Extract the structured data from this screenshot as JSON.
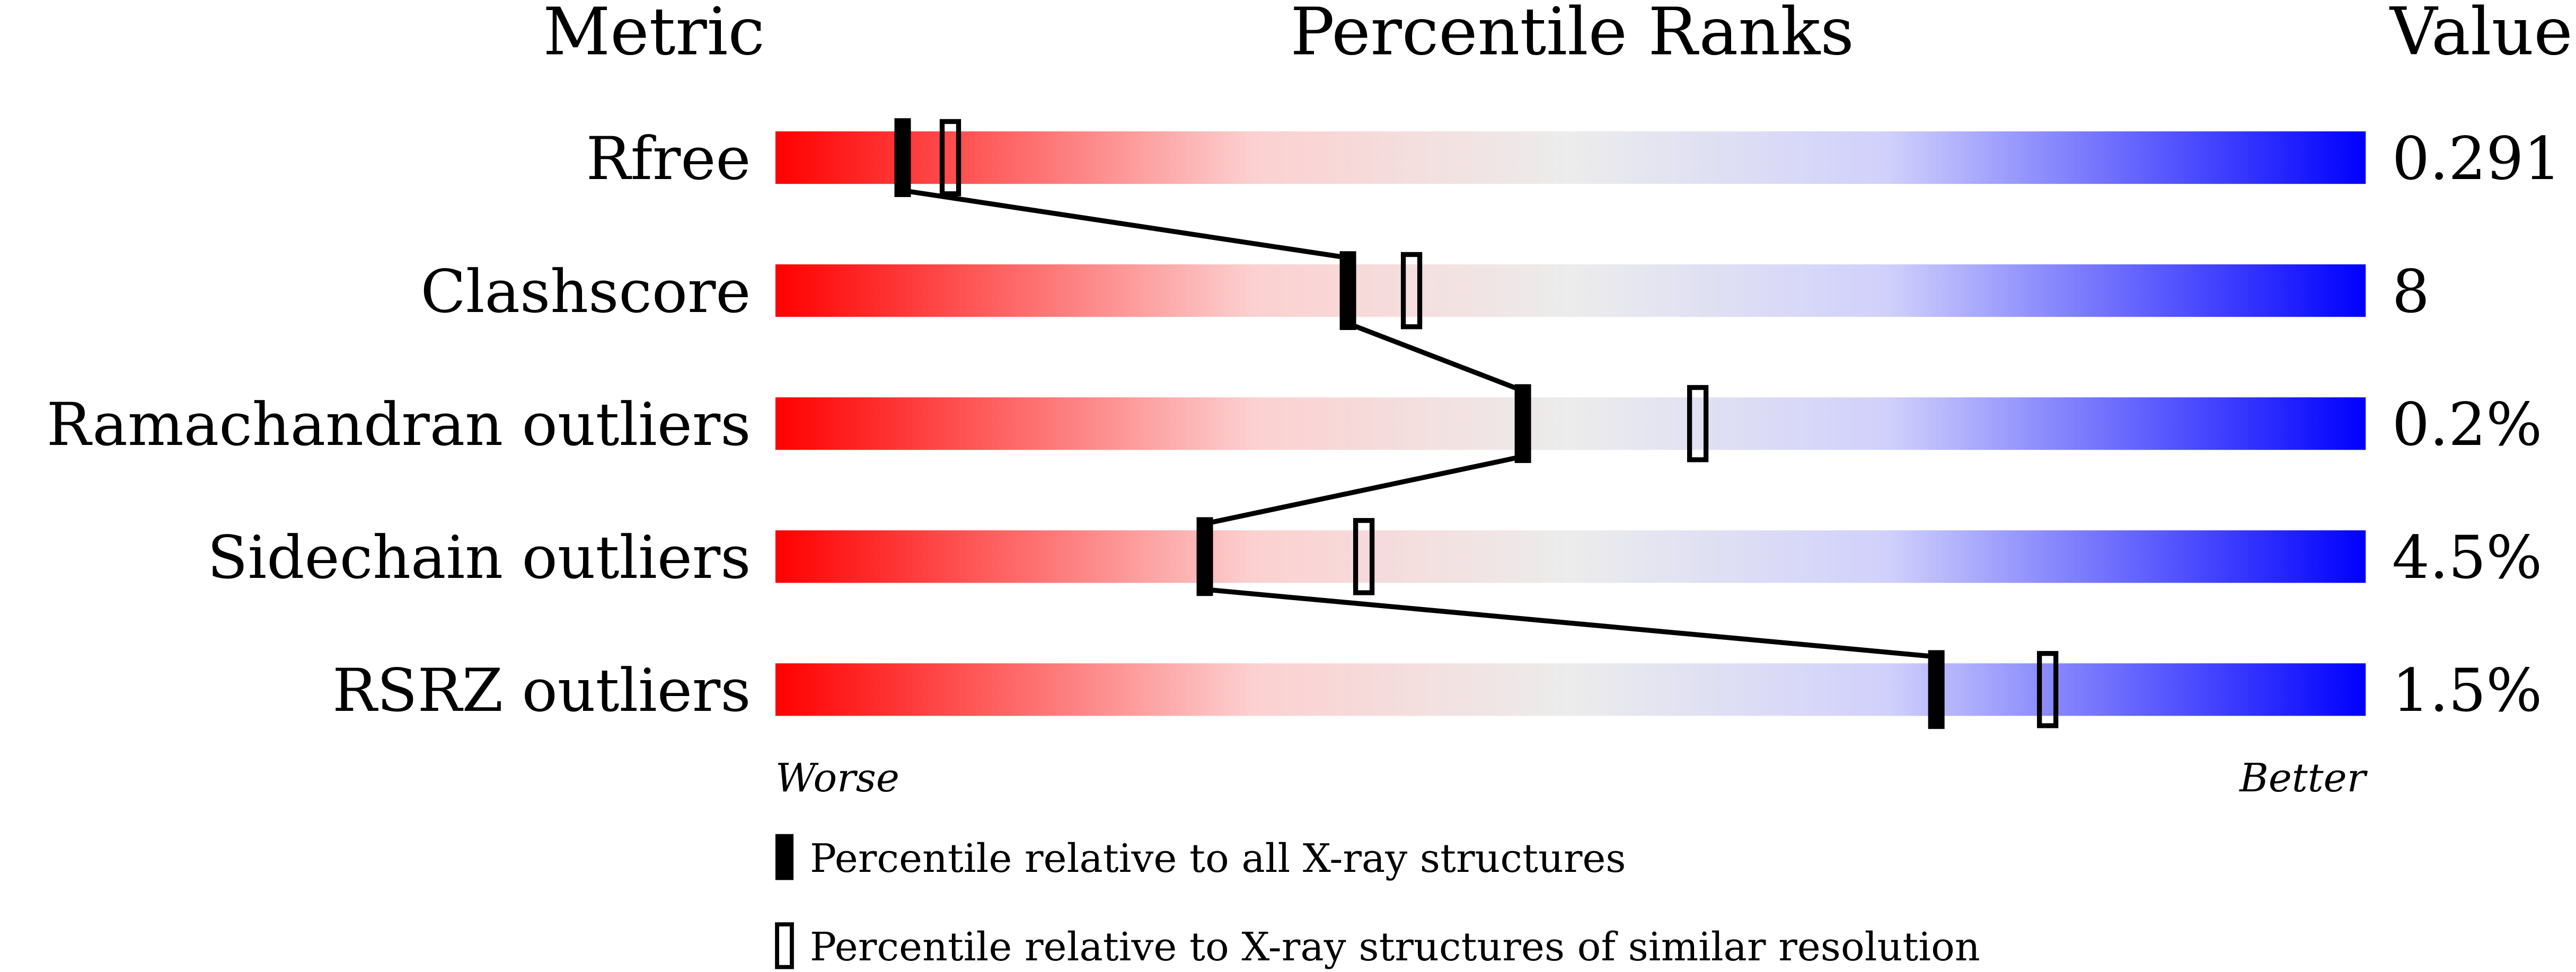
{
  "chart_data": {
    "type": "percentile",
    "column_headers": [
      "Metric",
      "Percentile Ranks",
      "Value"
    ],
    "categories": [
      "Rfree",
      "Clashscore",
      "Ramachandran outliers",
      "Sidechain outliers",
      "RSRZ outliers"
    ],
    "metric_values": [
      "0.291",
      "8",
      "0.2%",
      "4.5%",
      "1.5%"
    ],
    "series": [
      {
        "name": "Percentile relative to all X-ray structures",
        "color": "#000000",
        "values": [
          8,
          36,
          47,
          27,
          73
        ]
      },
      {
        "name": "Percentile relative to X-ray structures of similar resolution",
        "color": "#000000",
        "values": [
          11,
          40,
          58,
          37,
          80
        ]
      }
    ],
    "xlim": [
      0,
      100
    ],
    "axis_end_labels": [
      "Worse",
      "Better"
    ]
  }
}
